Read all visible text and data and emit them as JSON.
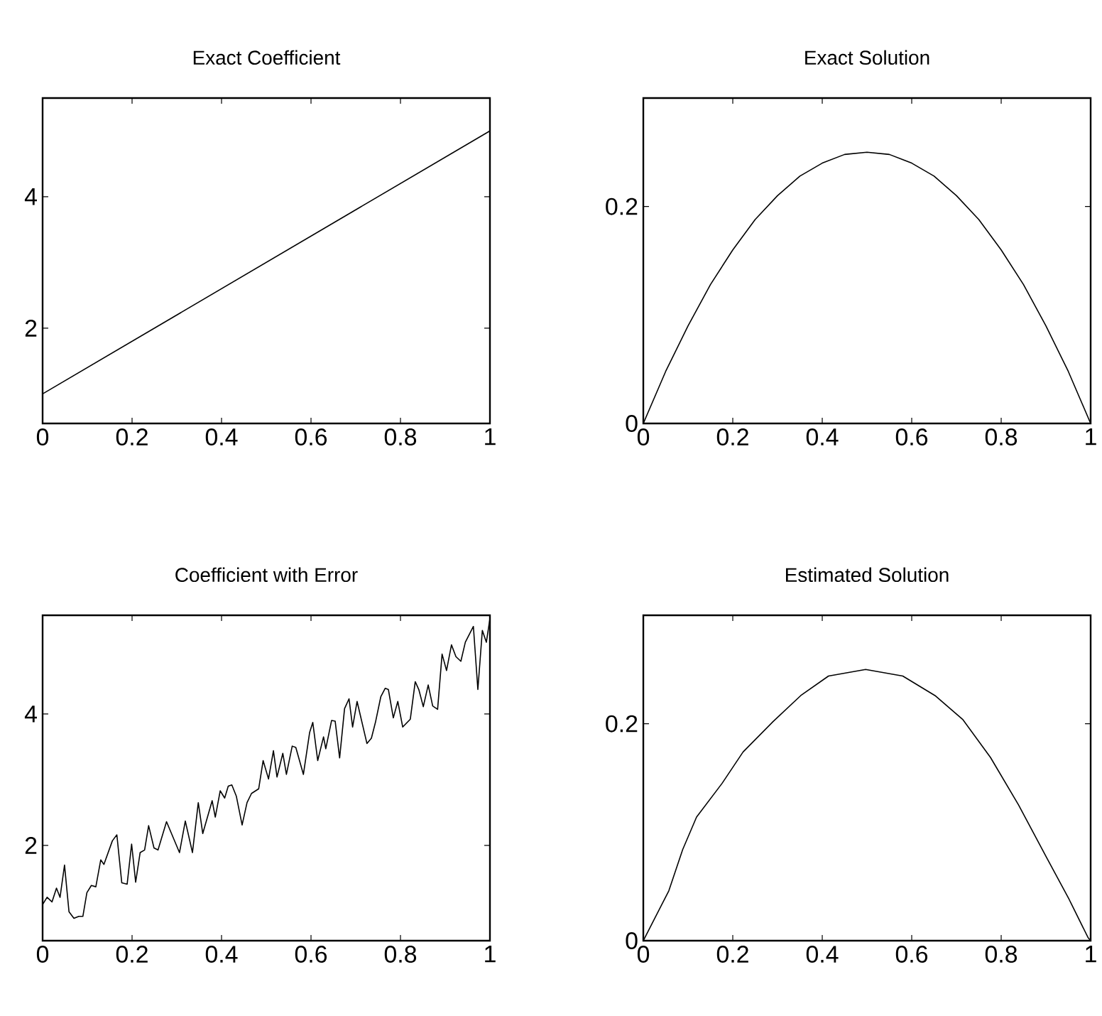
{
  "chart_data": [
    {
      "type": "line",
      "title": "Exact Coefficient",
      "xlim": [
        0,
        1
      ],
      "xticks": [
        0,
        0.2,
        0.4,
        0.6,
        0.8,
        1
      ],
      "ylim": [
        0.55,
        5.5
      ],
      "yticks": [
        2,
        4
      ],
      "series": [
        {
          "color": "#000000",
          "x": [
            0,
            1
          ],
          "values": [
            1,
            5
          ]
        }
      ]
    },
    {
      "type": "line",
      "title": "Exact Solution",
      "xlim": [
        0,
        1
      ],
      "xticks": [
        0,
        0.2,
        0.4,
        0.6,
        0.8,
        1
      ],
      "ylim": [
        0,
        0.3
      ],
      "yticks": [
        0,
        0.2
      ],
      "series": [
        {
          "color": "#000000",
          "x": [
            0,
            0.05,
            0.1,
            0.15,
            0.2,
            0.25,
            0.3,
            0.35,
            0.4,
            0.45,
            0.5,
            0.55,
            0.6,
            0.65,
            0.7,
            0.75,
            0.8,
            0.85,
            0.9,
            0.95,
            1
          ],
          "values": [
            0,
            0.048,
            0.09,
            0.128,
            0.16,
            0.188,
            0.21,
            0.228,
            0.24,
            0.248,
            0.25,
            0.248,
            0.24,
            0.228,
            0.21,
            0.188,
            0.16,
            0.128,
            0.09,
            0.048,
            0
          ]
        }
      ]
    },
    {
      "type": "line",
      "title": "Coefficient with Error",
      "xlim": [
        0,
        1
      ],
      "xticks": [
        0,
        0.2,
        0.4,
        0.6,
        0.8,
        1
      ],
      "ylim": [
        0.55,
        5.5
      ],
      "yticks": [
        2,
        4
      ],
      "series": [
        {
          "color": "#000000",
          "x": [
            0,
            0.01,
            0.021,
            0.031,
            0.039,
            0.049,
            0.059,
            0.07,
            0.081,
            0.09,
            0.099,
            0.109,
            0.119,
            0.13,
            0.137,
            0.156,
            0.166,
            0.177,
            0.189,
            0.199,
            0.208,
            0.218,
            0.228,
            0.237,
            0.249,
            0.258,
            0.277,
            0.306,
            0.319,
            0.335,
            0.348,
            0.358,
            0.379,
            0.386,
            0.397,
            0.407,
            0.415,
            0.423,
            0.433,
            0.446,
            0.457,
            0.467,
            0.483,
            0.493,
            0.505,
            0.516,
            0.524,
            0.537,
            0.545,
            0.558,
            0.566,
            0.583,
            0.597,
            0.604,
            0.615,
            0.628,
            0.633,
            0.646,
            0.654,
            0.664,
            0.675,
            0.685,
            0.693,
            0.703,
            0.725,
            0.735,
            0.744,
            0.756,
            0.766,
            0.773,
            0.784,
            0.794,
            0.805,
            0.822,
            0.833,
            0.841,
            0.851,
            0.862,
            0.872,
            0.883,
            0.893,
            0.903,
            0.914,
            0.924,
            0.935,
            0.945,
            0.963,
            0.973,
            0.983,
            0.992,
            1
          ],
          "values": [
            1.1,
            1.21,
            1.14,
            1.35,
            1.21,
            1.7,
            0.99,
            0.89,
            0.92,
            0.92,
            1.28,
            1.39,
            1.37,
            1.78,
            1.71,
            2.07,
            2.16,
            1.43,
            1.41,
            2.02,
            1.44,
            1.89,
            1.93,
            2.3,
            1.96,
            1.93,
            2.36,
            1.89,
            2.37,
            1.89,
            2.65,
            2.18,
            2.68,
            2.43,
            2.83,
            2.72,
            2.9,
            2.92,
            2.75,
            2.31,
            2.65,
            2.79,
            2.86,
            3.29,
            3.01,
            3.44,
            3.04,
            3.4,
            3.08,
            3.51,
            3.49,
            3.08,
            3.72,
            3.87,
            3.29,
            3.65,
            3.47,
            3.9,
            3.89,
            3.33,
            4.08,
            4.23,
            3.8,
            4.19,
            3.55,
            3.63,
            3.87,
            4.26,
            4.39,
            4.37,
            3.94,
            4.19,
            3.8,
            3.92,
            4.49,
            4.37,
            4.11,
            4.44,
            4.12,
            4.07,
            4.91,
            4.66,
            5.05,
            4.87,
            4.8,
            5.09,
            5.33,
            4.37,
            5.27,
            5.09,
            5.45
          ]
        }
      ]
    },
    {
      "type": "line",
      "title": "Estimated Solution",
      "xlim": [
        0,
        1
      ],
      "xticks": [
        0,
        0.2,
        0.4,
        0.6,
        0.8,
        1
      ],
      "ylim": [
        0,
        0.3
      ],
      "yticks": [
        0,
        0.2
      ],
      "series": [
        {
          "color": "#000000",
          "x": [
            0,
            0.057,
            0.088,
            0.119,
            0.176,
            0.223,
            0.29,
            0.352,
            0.414,
            0.497,
            0.58,
            0.652,
            0.714,
            0.776,
            0.839,
            0.901,
            0.952,
            0.994,
            1
          ],
          "values": [
            0,
            0.046,
            0.084,
            0.114,
            0.145,
            0.174,
            0.202,
            0.226,
            0.244,
            0.25,
            0.244,
            0.226,
            0.204,
            0.169,
            0.125,
            0.077,
            0.038,
            0.003,
            0
          ]
        }
      ]
    }
  ]
}
